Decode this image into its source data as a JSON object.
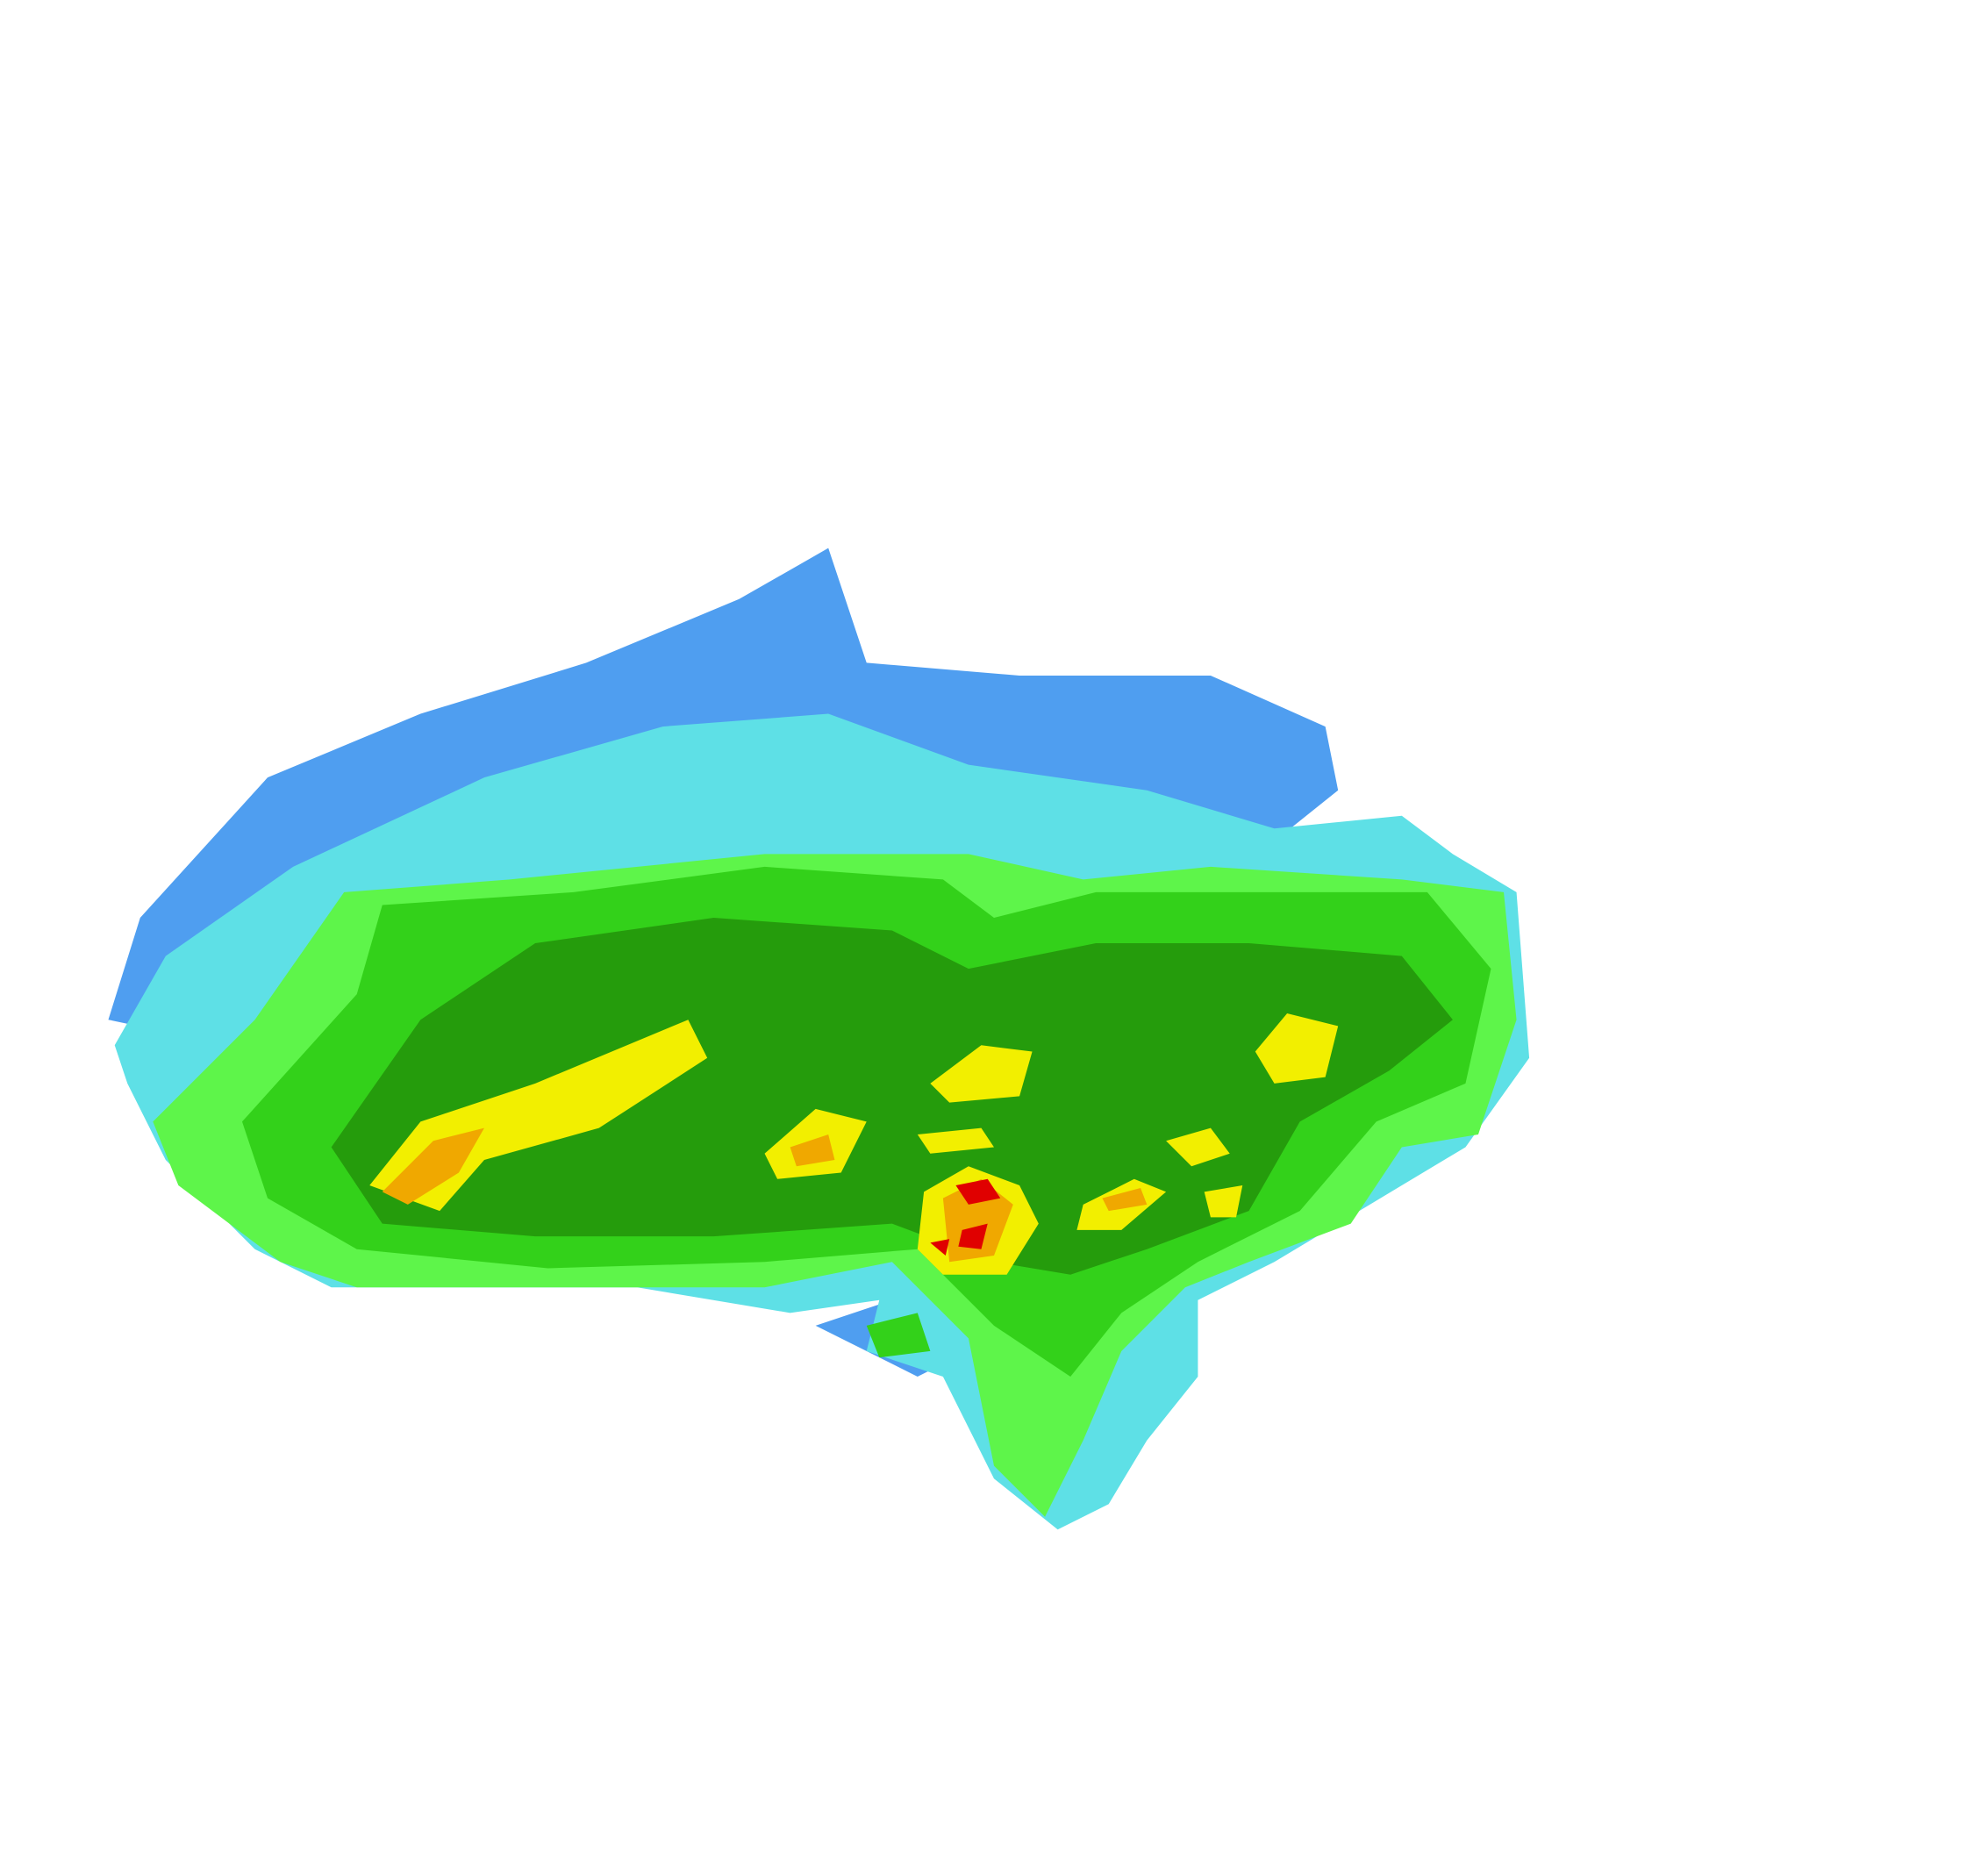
{
  "map": {
    "type": "radar-reflectivity",
    "background": "#ffffff",
    "colors": {
      "light_blue": "#4f9ef0",
      "cyan": "#5ee0e6",
      "light_green": "#5ef54a",
      "green": "#33d11a",
      "dark_green": "#259c0c",
      "yellow": "#f2ef00",
      "orange": "#f0a800",
      "red": "#e00000"
    }
  }
}
